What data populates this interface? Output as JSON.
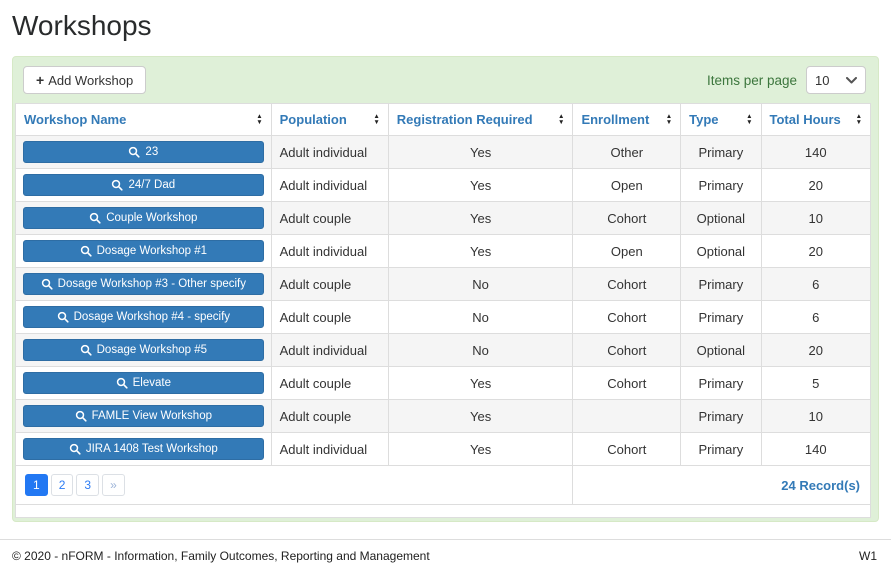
{
  "page": {
    "title": "Workshops",
    "footer_left": "© 2020 - nFORM - Information, Family Outcomes, Reporting and Management",
    "footer_right": "W1"
  },
  "toolbar": {
    "add_button_label": "Add Workshop",
    "items_per_page_label": "Items per page",
    "items_per_page_value": "10"
  },
  "table": {
    "columns": [
      "Workshop Name",
      "Population",
      "Registration Required",
      "Enrollment",
      "Type",
      "Total Hours"
    ],
    "rows": [
      {
        "name": "23",
        "population": "Adult individual",
        "registration_required": "Yes",
        "enrollment": "Other",
        "type": "Primary",
        "total_hours": "140"
      },
      {
        "name": "24/7 Dad",
        "population": "Adult individual",
        "registration_required": "Yes",
        "enrollment": "Open",
        "type": "Primary",
        "total_hours": "20"
      },
      {
        "name": "Couple Workshop",
        "population": "Adult couple",
        "registration_required": "Yes",
        "enrollment": "Cohort",
        "type": "Optional",
        "total_hours": "10"
      },
      {
        "name": "Dosage Workshop #1",
        "population": "Adult individual",
        "registration_required": "Yes",
        "enrollment": "Open",
        "type": "Optional",
        "total_hours": "20"
      },
      {
        "name": "Dosage Workshop #3 - Other specify",
        "population": "Adult couple",
        "registration_required": "No",
        "enrollment": "Cohort",
        "type": "Primary",
        "total_hours": "6"
      },
      {
        "name": "Dosage Workshop #4 - specify",
        "population": "Adult couple",
        "registration_required": "No",
        "enrollment": "Cohort",
        "type": "Primary",
        "total_hours": "6"
      },
      {
        "name": "Dosage Workshop #5",
        "population": "Adult individual",
        "registration_required": "No",
        "enrollment": "Cohort",
        "type": "Optional",
        "total_hours": "20"
      },
      {
        "name": "Elevate",
        "population": "Adult couple",
        "registration_required": "Yes",
        "enrollment": "Cohort",
        "type": "Primary",
        "total_hours": "5"
      },
      {
        "name": "FAMLE View Workshop",
        "population": "Adult couple",
        "registration_required": "Yes",
        "enrollment": "",
        "type": "Primary",
        "total_hours": "10"
      },
      {
        "name": "JIRA 1408 Test Workshop",
        "population": "Adult individual",
        "registration_required": "Yes",
        "enrollment": "Cohort",
        "type": "Primary",
        "total_hours": "140"
      }
    ],
    "records_label": "24 Record(s)"
  },
  "pagination": {
    "pages": [
      "1",
      "2",
      "3"
    ],
    "active_page": "1",
    "next_label": "»"
  },
  "colors": {
    "accent_blue": "#337ab7",
    "button_blue": "#337ab7",
    "button_border": "#2e6da4",
    "panel_green_bg": "#dff0d8",
    "panel_green_border": "#d6e9c6",
    "label_green": "#3c763d",
    "stripe_gray": "#f5f5f5",
    "table_border": "#dddddd",
    "pagination_active": "#2278f3",
    "pagination_link": "#2e7cf3",
    "pagination_muted": "#9db4d8"
  }
}
